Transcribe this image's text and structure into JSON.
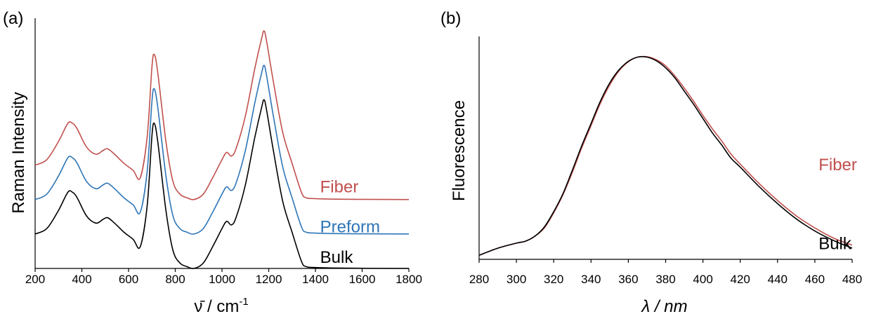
{
  "chart_data": [
    {
      "type": "line",
      "panel_label": "(a)",
      "xlabel": "ν̄ / cm",
      "xlabel_sup": "-1",
      "ylabel": "Raman Intensity",
      "xlim": [
        200,
        1800
      ],
      "xticks": [
        "200",
        "400",
        "600",
        "800",
        "1000",
        "1200",
        "1400",
        "1600",
        "1800"
      ],
      "y_tick_labels": false,
      "series": [
        {
          "name": "Fiber",
          "color": "#c0504d",
          "offset": 0.38,
          "points": [
            [
              200,
              0.19
            ],
            [
              250,
              0.22
            ],
            [
              300,
              0.32
            ],
            [
              340,
              0.42
            ],
            [
              360,
              0.42
            ],
            [
              380,
              0.39
            ],
            [
              420,
              0.29
            ],
            [
              460,
              0.25
            ],
            [
              490,
              0.27
            ],
            [
              510,
              0.28
            ],
            [
              540,
              0.25
            ],
            [
              580,
              0.2
            ],
            [
              620,
              0.16
            ],
            [
              650,
              0.12
            ],
            [
              680,
              0.35
            ],
            [
              700,
              0.73
            ],
            [
              710,
              0.8
            ],
            [
              725,
              0.7
            ],
            [
              760,
              0.32
            ],
            [
              790,
              0.1
            ],
            [
              820,
              0.03
            ],
            [
              850,
              0.01
            ],
            [
              880,
              0.0
            ],
            [
              920,
              0.03
            ],
            [
              960,
              0.12
            ],
            [
              1000,
              0.22
            ],
            [
              1020,
              0.26
            ],
            [
              1040,
              0.24
            ],
            [
              1060,
              0.28
            ],
            [
              1100,
              0.46
            ],
            [
              1140,
              0.72
            ],
            [
              1170,
              0.89
            ],
            [
              1180,
              0.93
            ],
            [
              1190,
              0.88
            ],
            [
              1220,
              0.65
            ],
            [
              1260,
              0.37
            ],
            [
              1300,
              0.2
            ],
            [
              1340,
              0.04
            ],
            [
              1360,
              0.01
            ],
            [
              1400,
              0.005
            ],
            [
              1500,
              0.002
            ],
            [
              1600,
              0.001
            ],
            [
              1800,
              0.0
            ]
          ]
        },
        {
          "name": "Preform",
          "color": "#2e75b6",
          "offset": 0.19,
          "points": [
            [
              200,
              0.19
            ],
            [
              250,
              0.22
            ],
            [
              300,
              0.32
            ],
            [
              340,
              0.42
            ],
            [
              360,
              0.42
            ],
            [
              380,
              0.39
            ],
            [
              420,
              0.29
            ],
            [
              460,
              0.25
            ],
            [
              490,
              0.27
            ],
            [
              510,
              0.28
            ],
            [
              540,
              0.25
            ],
            [
              580,
              0.2
            ],
            [
              620,
              0.16
            ],
            [
              650,
              0.12
            ],
            [
              680,
              0.35
            ],
            [
              700,
              0.73
            ],
            [
              710,
              0.8
            ],
            [
              725,
              0.7
            ],
            [
              760,
              0.32
            ],
            [
              790,
              0.1
            ],
            [
              820,
              0.03
            ],
            [
              850,
              0.01
            ],
            [
              880,
              0.0
            ],
            [
              920,
              0.03
            ],
            [
              960,
              0.12
            ],
            [
              1000,
              0.22
            ],
            [
              1020,
              0.26
            ],
            [
              1040,
              0.24
            ],
            [
              1060,
              0.28
            ],
            [
              1100,
              0.46
            ],
            [
              1140,
              0.72
            ],
            [
              1170,
              0.89
            ],
            [
              1180,
              0.93
            ],
            [
              1190,
              0.88
            ],
            [
              1220,
              0.65
            ],
            [
              1260,
              0.37
            ],
            [
              1300,
              0.2
            ],
            [
              1340,
              0.04
            ],
            [
              1360,
              0.01
            ],
            [
              1400,
              0.005
            ],
            [
              1500,
              0.002
            ],
            [
              1600,
              0.001
            ],
            [
              1800,
              0.0
            ]
          ]
        },
        {
          "name": "Bulk",
          "color": "#000000",
          "offset": 0.0,
          "points": [
            [
              200,
              0.19
            ],
            [
              250,
              0.22
            ],
            [
              300,
              0.32
            ],
            [
              340,
              0.42
            ],
            [
              360,
              0.42
            ],
            [
              380,
              0.39
            ],
            [
              420,
              0.29
            ],
            [
              460,
              0.25
            ],
            [
              490,
              0.27
            ],
            [
              510,
              0.28
            ],
            [
              540,
              0.25
            ],
            [
              580,
              0.2
            ],
            [
              620,
              0.16
            ],
            [
              650,
              0.12
            ],
            [
              680,
              0.35
            ],
            [
              700,
              0.73
            ],
            [
              710,
              0.8
            ],
            [
              725,
              0.7
            ],
            [
              760,
              0.32
            ],
            [
              790,
              0.1
            ],
            [
              820,
              0.03
            ],
            [
              850,
              0.01
            ],
            [
              880,
              0.0
            ],
            [
              920,
              0.03
            ],
            [
              960,
              0.12
            ],
            [
              1000,
              0.22
            ],
            [
              1020,
              0.26
            ],
            [
              1040,
              0.24
            ],
            [
              1060,
              0.28
            ],
            [
              1100,
              0.46
            ],
            [
              1140,
              0.72
            ],
            [
              1170,
              0.89
            ],
            [
              1180,
              0.93
            ],
            [
              1190,
              0.88
            ],
            [
              1220,
              0.65
            ],
            [
              1260,
              0.37
            ],
            [
              1300,
              0.2
            ],
            [
              1340,
              0.04
            ],
            [
              1360,
              0.01
            ],
            [
              1400,
              0.005
            ],
            [
              1500,
              0.002
            ],
            [
              1600,
              0.001
            ],
            [
              1800,
              0.0
            ]
          ]
        }
      ],
      "labels": [
        {
          "text": "Fiber",
          "color": "#c0504d",
          "x": 1420,
          "y": 0.42
        },
        {
          "text": "Preform",
          "color": "#2e75b6",
          "x": 1420,
          "y": 0.2
        },
        {
          "text": "Bulk",
          "color": "#000000",
          "x": 1420,
          "y": 0.03
        }
      ]
    },
    {
      "type": "line",
      "panel_label": "(b)",
      "xlabel": "λ / nm",
      "ylabel": "Fluorescence",
      "xlim": [
        280,
        480
      ],
      "xticks": [
        "280",
        "300",
        "320",
        "340",
        "360",
        "380",
        "400",
        "420",
        "440",
        "460",
        "480"
      ],
      "y_tick_labels": false,
      "series": [
        {
          "name": "Fiber",
          "color": "#c0504d",
          "points": [
            [
              280,
              0.02
            ],
            [
              290,
              0.055
            ],
            [
              300,
              0.08
            ],
            [
              305,
              0.09
            ],
            [
              310,
              0.115
            ],
            [
              315,
              0.155
            ],
            [
              320,
              0.23
            ],
            [
              325,
              0.32
            ],
            [
              330,
              0.43
            ],
            [
              335,
              0.55
            ],
            [
              340,
              0.66
            ],
            [
              345,
              0.77
            ],
            [
              350,
              0.86
            ],
            [
              355,
              0.93
            ],
            [
              360,
              0.975
            ],
            [
              365,
              0.998
            ],
            [
              370,
              1.0
            ],
            [
              375,
              0.985
            ],
            [
              380,
              0.955
            ],
            [
              385,
              0.905
            ],
            [
              390,
              0.845
            ],
            [
              395,
              0.78
            ],
            [
              400,
              0.71
            ],
            [
              405,
              0.645
            ],
            [
              410,
              0.585
            ],
            [
              415,
              0.52
            ],
            [
              420,
              0.47
            ],
            [
              430,
              0.375
            ],
            [
              440,
              0.29
            ],
            [
              450,
              0.215
            ],
            [
              460,
              0.155
            ],
            [
              470,
              0.105
            ],
            [
              480,
              0.07
            ]
          ]
        },
        {
          "name": "Bulk",
          "color": "#000000",
          "points": [
            [
              280,
              0.02
            ],
            [
              290,
              0.055
            ],
            [
              300,
              0.08
            ],
            [
              305,
              0.09
            ],
            [
              310,
              0.115
            ],
            [
              315,
              0.16
            ],
            [
              320,
              0.235
            ],
            [
              325,
              0.325
            ],
            [
              330,
              0.44
            ],
            [
              335,
              0.56
            ],
            [
              340,
              0.67
            ],
            [
              345,
              0.78
            ],
            [
              350,
              0.87
            ],
            [
              355,
              0.935
            ],
            [
              360,
              0.977
            ],
            [
              365,
              0.998
            ],
            [
              370,
              0.998
            ],
            [
              375,
              0.98
            ],
            [
              380,
              0.945
            ],
            [
              385,
              0.895
            ],
            [
              390,
              0.83
            ],
            [
              395,
              0.765
            ],
            [
              400,
              0.695
            ],
            [
              405,
              0.625
            ],
            [
              410,
              0.565
            ],
            [
              415,
              0.5
            ],
            [
              420,
              0.455
            ],
            [
              430,
              0.36
            ],
            [
              440,
              0.275
            ],
            [
              450,
              0.2
            ],
            [
              460,
              0.14
            ],
            [
              470,
              0.093
            ],
            [
              480,
              0.055
            ]
          ]
        }
      ],
      "labels": [
        {
          "text": "Fiber",
          "color": "#c0504d",
          "x": 462,
          "y": 0.44
        },
        {
          "text": "Bulk",
          "color": "#000000",
          "x": 462,
          "y": 0.05
        }
      ]
    }
  ]
}
